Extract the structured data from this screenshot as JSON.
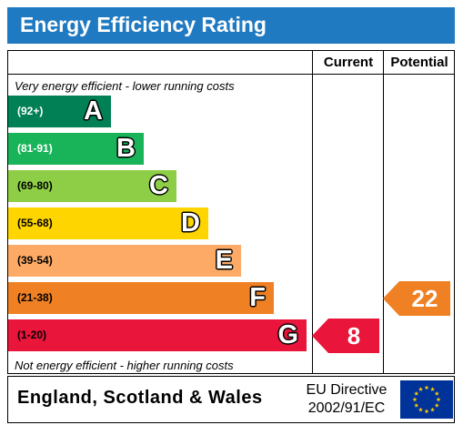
{
  "title": "Energy Efficiency Rating",
  "columns": {
    "current": "Current",
    "potential": "Potential"
  },
  "top_note": "Very energy efficient - lower running costs",
  "bottom_note": "Not energy efficient - higher running costs",
  "footer": {
    "country": "England, Scotland & Wales",
    "directive_line1": "EU Directive",
    "directive_line2": "2002/91/EC",
    "flag_icon": "eu-flag-icon"
  },
  "colors": {
    "title_bar": "#1f7ac2",
    "A": "#008054",
    "B": "#19b459",
    "C": "#8dce46",
    "D": "#ffd500",
    "E": "#fcaa65",
    "F": "#ef8023",
    "G": "#e9153b"
  },
  "chart_data": {
    "type": "bar",
    "title": "Energy Efficiency Rating",
    "bands": [
      {
        "letter": "A",
        "range": "(92+)",
        "min": 92,
        "max": 100,
        "color": "#008054"
      },
      {
        "letter": "B",
        "range": "(81-91)",
        "min": 81,
        "max": 91,
        "color": "#19b459"
      },
      {
        "letter": "C",
        "range": "(69-80)",
        "min": 69,
        "max": 80,
        "color": "#8dce46"
      },
      {
        "letter": "D",
        "range": "(55-68)",
        "min": 55,
        "max": 68,
        "color": "#ffd500"
      },
      {
        "letter": "E",
        "range": "(39-54)",
        "min": 39,
        "max": 54,
        "color": "#fcaa65"
      },
      {
        "letter": "F",
        "range": "(21-38)",
        "min": 21,
        "max": 38,
        "color": "#ef8023"
      },
      {
        "letter": "G",
        "range": "(1-20)",
        "min": 1,
        "max": 20,
        "color": "#e9153b"
      }
    ],
    "current": {
      "value": 8,
      "band": "G",
      "color": "#e9153b"
    },
    "potential": {
      "value": 22,
      "band": "F",
      "color": "#ef8023"
    }
  }
}
